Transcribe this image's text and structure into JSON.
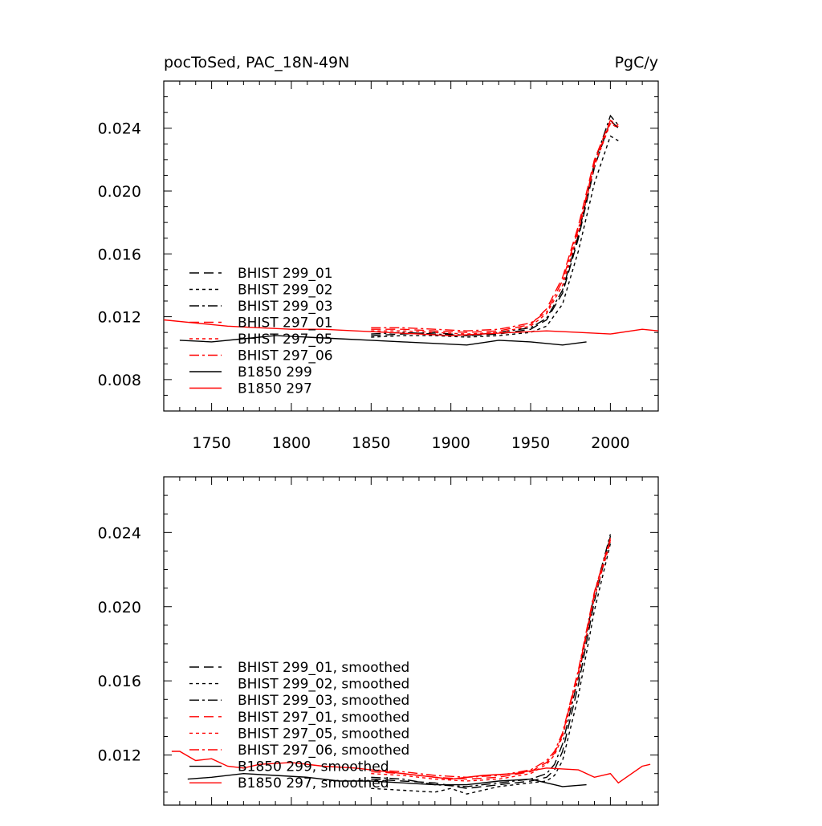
{
  "header": {
    "title": "pocToSed, PAC_18N-49N",
    "units": "PgC/y"
  },
  "colors": {
    "black": "#000000",
    "red": "#ff0000"
  },
  "chart_data": [
    {
      "type": "line",
      "xlim": [
        1720,
        2030
      ],
      "ylim": [
        0.006,
        0.027
      ],
      "xticks": [
        1750,
        1800,
        1850,
        1900,
        1950,
        2000
      ],
      "xtick_labels": [
        "1750",
        "1800",
        "1850",
        "1900",
        "1950",
        "2000"
      ],
      "yticks": [
        0.008,
        0.012,
        0.016,
        0.02,
        0.024
      ],
      "ytick_labels": [
        "0.008",
        "0.012",
        "0.016",
        "0.020",
        "0.024"
      ],
      "legend_position": "lower-left",
      "series": [
        {
          "name": "BHIST 299_01",
          "color": "#000000",
          "dash": "long-dash",
          "x": [
            1850,
            1870,
            1890,
            1910,
            1930,
            1950,
            1960,
            1970,
            1980,
            1990,
            2000,
            2005
          ],
          "y": [
            0.0108,
            0.0109,
            0.011,
            0.0108,
            0.0109,
            0.0112,
            0.0118,
            0.0135,
            0.017,
            0.0215,
            0.0245,
            0.024
          ]
        },
        {
          "name": "BHIST 299_02",
          "color": "#000000",
          "dash": "short-dash",
          "x": [
            1850,
            1870,
            1890,
            1910,
            1930,
            1950,
            1960,
            1970,
            1980,
            1990,
            2000,
            2005
          ],
          "y": [
            0.0107,
            0.0108,
            0.0108,
            0.0107,
            0.0108,
            0.011,
            0.0114,
            0.0128,
            0.0162,
            0.0205,
            0.0235,
            0.0232
          ]
        },
        {
          "name": "BHIST 299_03",
          "color": "#000000",
          "dash": "dash-dot",
          "x": [
            1850,
            1870,
            1890,
            1910,
            1930,
            1950,
            1960,
            1970,
            1980,
            1990,
            2000,
            2005
          ],
          "y": [
            0.0109,
            0.011,
            0.0109,
            0.0108,
            0.011,
            0.0113,
            0.0119,
            0.0137,
            0.0172,
            0.0218,
            0.0248,
            0.0242
          ]
        },
        {
          "name": "BHIST 297_01",
          "color": "#ff0000",
          "dash": "long-dash",
          "x": [
            1850,
            1870,
            1890,
            1910,
            1930,
            1950,
            1960,
            1970,
            1980,
            1990,
            2000,
            2005
          ],
          "y": [
            0.0112,
            0.0112,
            0.0111,
            0.011,
            0.0111,
            0.0115,
            0.0125,
            0.0145,
            0.0178,
            0.022,
            0.0245,
            0.0242
          ]
        },
        {
          "name": "BHIST 297_05",
          "color": "#ff0000",
          "dash": "short-dash",
          "x": [
            1850,
            1870,
            1890,
            1910,
            1930,
            1950,
            1960,
            1970,
            1980,
            1990,
            2000,
            2005
          ],
          "y": [
            0.0111,
            0.0111,
            0.011,
            0.0109,
            0.011,
            0.0114,
            0.0122,
            0.014,
            0.0174,
            0.0216,
            0.0243,
            0.024
          ]
        },
        {
          "name": "BHIST 297_06",
          "color": "#ff0000",
          "dash": "dash-dot",
          "x": [
            1850,
            1870,
            1890,
            1910,
            1930,
            1950,
            1960,
            1970,
            1980,
            1990,
            2000,
            2005
          ],
          "y": [
            0.0113,
            0.0113,
            0.0112,
            0.0111,
            0.0112,
            0.0116,
            0.0123,
            0.0143,
            0.0176,
            0.0218,
            0.0244,
            0.0241
          ]
        },
        {
          "name": "B1850 299",
          "color": "#000000",
          "dash": "solid",
          "x": [
            1730,
            1750,
            1770,
            1790,
            1810,
            1830,
            1850,
            1870,
            1890,
            1910,
            1930,
            1950,
            1970,
            1985
          ],
          "y": [
            0.0105,
            0.0104,
            0.0106,
            0.0108,
            0.0107,
            0.0106,
            0.0105,
            0.0104,
            0.0103,
            0.0102,
            0.0105,
            0.0104,
            0.0102,
            0.0104
          ]
        },
        {
          "name": "B1850 297",
          "color": "#ff0000",
          "dash": "solid",
          "x": [
            1720,
            1740,
            1760,
            1780,
            1800,
            1820,
            1840,
            1860,
            1880,
            1900,
            1920,
            1940,
            1960,
            1980,
            2000,
            2020,
            2030
          ],
          "y": [
            0.0118,
            0.0116,
            0.0114,
            0.0113,
            0.0112,
            0.0112,
            0.0111,
            0.011,
            0.0109,
            0.0108,
            0.0109,
            0.011,
            0.0111,
            0.011,
            0.0109,
            0.0112,
            0.0111
          ]
        }
      ]
    },
    {
      "type": "line",
      "xlim": [
        1720,
        2030
      ],
      "ylim": [
        0.0093,
        0.027
      ],
      "xticks": [
        1750,
        1800,
        1850,
        1900,
        1950,
        2000
      ],
      "xtick_labels": [],
      "yticks": [
        0.012,
        0.016,
        0.02,
        0.024
      ],
      "ytick_labels": [
        "0.012",
        "0.016",
        "0.020",
        "0.024"
      ],
      "legend_position": "lower-left",
      "series": [
        {
          "name": "BHIST 299_01, smoothed",
          "color": "#000000",
          "dash": "long-dash",
          "x": [
            1850,
            1870,
            1890,
            1910,
            1930,
            1950,
            1960,
            1965,
            1970,
            1980,
            1990,
            2000
          ],
          "y": [
            0.0107,
            0.0106,
            0.0105,
            0.0102,
            0.0104,
            0.0106,
            0.0108,
            0.0112,
            0.0122,
            0.0158,
            0.0203,
            0.0238
          ]
        },
        {
          "name": "BHIST 299_02, smoothed",
          "color": "#000000",
          "dash": "short-dash",
          "x": [
            1850,
            1870,
            1890,
            1900,
            1910,
            1930,
            1950,
            1960,
            1965,
            1970,
            1980,
            1990,
            2000
          ],
          "y": [
            0.0102,
            0.0101,
            0.01,
            0.0102,
            0.0099,
            0.0103,
            0.0105,
            0.0106,
            0.0109,
            0.0117,
            0.0152,
            0.0198,
            0.0234
          ]
        },
        {
          "name": "BHIST 299_03, smoothed",
          "color": "#000000",
          "dash": "dash-dot",
          "x": [
            1850,
            1870,
            1890,
            1910,
            1930,
            1950,
            1960,
            1965,
            1970,
            1980,
            1990,
            2000
          ],
          "y": [
            0.0108,
            0.0107,
            0.0104,
            0.0103,
            0.0105,
            0.0107,
            0.011,
            0.0115,
            0.0126,
            0.0162,
            0.0207,
            0.0239
          ]
        },
        {
          "name": "BHIST 297_01, smoothed",
          "color": "#ff0000",
          "dash": "long-dash",
          "x": [
            1850,
            1870,
            1890,
            1910,
            1930,
            1950,
            1960,
            1965,
            1970,
            1980,
            1990,
            2000
          ],
          "y": [
            0.0111,
            0.011,
            0.0108,
            0.0107,
            0.0108,
            0.0111,
            0.0116,
            0.0121,
            0.0131,
            0.0165,
            0.0207,
            0.0236
          ]
        },
        {
          "name": "BHIST 297_05, smoothed",
          "color": "#ff0000",
          "dash": "short-dash",
          "x": [
            1850,
            1870,
            1890,
            1910,
            1930,
            1950,
            1960,
            1965,
            1970,
            1980,
            1990,
            2000
          ],
          "y": [
            0.011,
            0.0109,
            0.0107,
            0.0106,
            0.0107,
            0.011,
            0.0115,
            0.012,
            0.013,
            0.0163,
            0.0205,
            0.0235
          ]
        },
        {
          "name": "BHIST 297_06, smoothed",
          "color": "#ff0000",
          "dash": "dash-dot",
          "x": [
            1850,
            1870,
            1890,
            1910,
            1930,
            1950,
            1960,
            1965,
            1970,
            1980,
            1990,
            2000
          ],
          "y": [
            0.0112,
            0.0111,
            0.0109,
            0.0108,
            0.0109,
            0.0112,
            0.0117,
            0.0122,
            0.0132,
            0.0166,
            0.0208,
            0.0237
          ]
        },
        {
          "name": "B1850 299, smoothed",
          "color": "#000000",
          "dash": "solid",
          "x": [
            1735,
            1750,
            1770,
            1790,
            1810,
            1830,
            1850,
            1870,
            1890,
            1910,
            1930,
            1950,
            1960,
            1970,
            1985
          ],
          "y": [
            0.0107,
            0.0108,
            0.011,
            0.0109,
            0.0108,
            0.0106,
            0.0106,
            0.0105,
            0.0104,
            0.0104,
            0.0106,
            0.0107,
            0.0105,
            0.0103,
            0.0104
          ]
        },
        {
          "name": "B1850 297, smoothed",
          "color": "#ff0000",
          "dash": "solid",
          "x": [
            1725,
            1730,
            1740,
            1750,
            1760,
            1770,
            1780,
            1800,
            1820,
            1840,
            1860,
            1880,
            1900,
            1920,
            1940,
            1960,
            1980,
            1990,
            2000,
            2005,
            2010,
            2020,
            2025
          ],
          "y": [
            0.0122,
            0.0122,
            0.0117,
            0.0118,
            0.0114,
            0.0113,
            0.0115,
            0.0116,
            0.0114,
            0.0113,
            0.0111,
            0.0109,
            0.0107,
            0.0109,
            0.011,
            0.0113,
            0.0112,
            0.0108,
            0.011,
            0.0105,
            0.0108,
            0.0114,
            0.0115
          ]
        }
      ]
    }
  ]
}
